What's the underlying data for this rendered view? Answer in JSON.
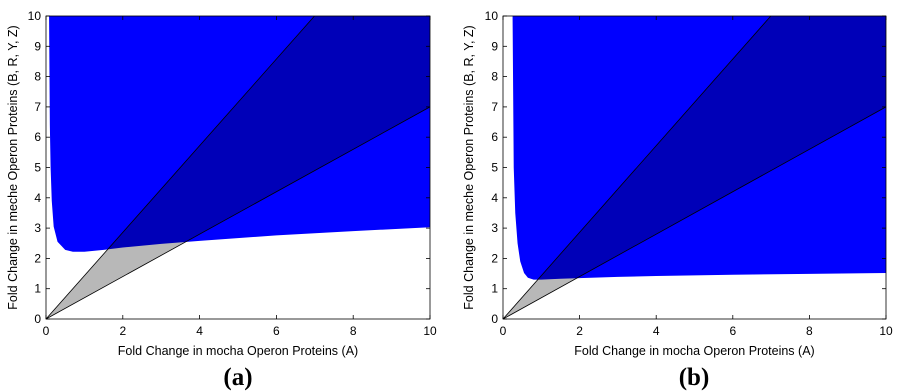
{
  "chart_data": [
    {
      "panel_label": "(a)",
      "type": "area",
      "xlabel": "Fold Change in mocha Operon Proteins (A)",
      "ylabel": "Fold Change in meche Operon Proteins (B, R, Y, Z)",
      "xlim": [
        0,
        10
      ],
      "ylim": [
        0,
        10
      ],
      "xticks": [
        "0",
        "2",
        "4",
        "6",
        "8",
        "10"
      ],
      "yticks": [
        "0",
        "1",
        "2",
        "3",
        "4",
        "5",
        "6",
        "7",
        "8",
        "9",
        "10"
      ],
      "grid": false,
      "colors": {
        "region": "#0000ff",
        "wedge": "#000000",
        "wedge_opacity": 0.28,
        "outline": "#000000"
      },
      "region_lower_boundary": {
        "x": [
          0.08,
          0.1,
          0.12,
          0.15,
          0.2,
          0.3,
          0.5,
          0.7,
          1.0,
          1.5,
          2.0,
          3.0,
          4.0,
          6.0,
          8.0,
          10.0
        ],
        "y": [
          10.0,
          6.4,
          5.0,
          3.9,
          3.05,
          2.55,
          2.28,
          2.22,
          2.22,
          2.28,
          2.36,
          2.48,
          2.58,
          2.76,
          2.9,
          3.03
        ]
      },
      "wedge_slopes": [
        0.7,
        1.43
      ],
      "wedge_origin": [
        0,
        0
      ]
    },
    {
      "panel_label": "(b)",
      "type": "area",
      "xlabel": "Fold Change in mocha Operon Proteins (A)",
      "ylabel": "Fold Change in meche Operon Proteins (B, R, Y, Z)",
      "xlim": [
        0,
        10
      ],
      "ylim": [
        0,
        10
      ],
      "xticks": [
        "0",
        "2",
        "4",
        "6",
        "8",
        "10"
      ],
      "yticks": [
        "0",
        "1",
        "2",
        "3",
        "4",
        "5",
        "6",
        "7",
        "8",
        "9",
        "10"
      ],
      "grid": false,
      "colors": {
        "region": "#0000ff",
        "wedge": "#000000",
        "wedge_opacity": 0.28,
        "outline": "#000000"
      },
      "region_lower_boundary": {
        "x": [
          0.25,
          0.28,
          0.32,
          0.38,
          0.45,
          0.55,
          0.65,
          0.8,
          1.0,
          1.5,
          2.0,
          3.0,
          4.0,
          6.0,
          8.0,
          10.0
        ],
        "y": [
          10.0,
          5.0,
          3.5,
          2.5,
          1.9,
          1.52,
          1.36,
          1.3,
          1.3,
          1.33,
          1.35,
          1.39,
          1.42,
          1.46,
          1.49,
          1.52
        ]
      },
      "wedge_slopes": [
        0.7,
        1.43
      ],
      "wedge_origin": [
        0,
        0
      ]
    }
  ]
}
